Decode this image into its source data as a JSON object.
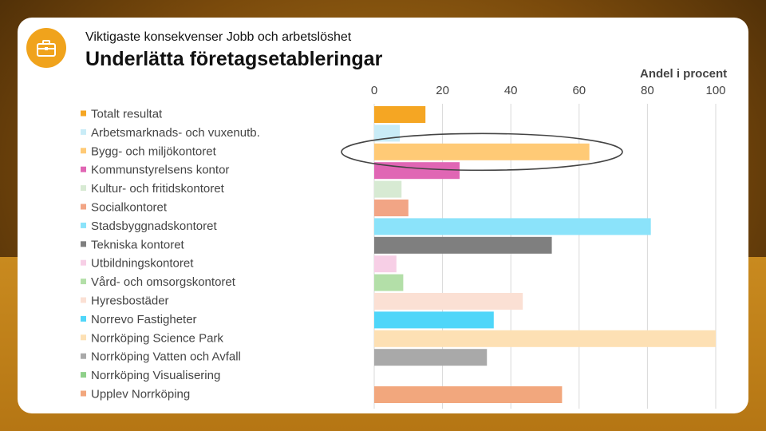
{
  "header": {
    "subtitle": "Viktigaste konsekvenser Jobb och arbetslöshet",
    "title": "Underlätta företagsetableringar",
    "icon": "briefcase-icon"
  },
  "chart_data": {
    "type": "bar",
    "orientation": "horizontal",
    "axis_label": "Andel i procent",
    "xlim": [
      0,
      100
    ],
    "ticks": [
      0,
      20,
      40,
      60,
      80,
      100
    ],
    "grid": true,
    "legend_position": "left",
    "highlighted_category": "Bygg- och miljökontoret",
    "categories": [
      "Totalt resultat",
      "Arbetsmarknads- och vuxenutb.",
      "Bygg- och miljökontoret",
      "Kommunstyrelsens kontor",
      "Kultur- och fritidskontoret",
      "Socialkontoret",
      "Stadsbyggnadskontoret",
      "Tekniska kontoret",
      "Utbildningskontoret",
      "Vård- och omsorgskontoret",
      "Hyresbostäder",
      "Norrevo Fastigheter",
      "Norrköping Science Park",
      "Norrköping Vatten och Avfall",
      "Norrköping Visualisering",
      "Upplev Norrköping"
    ],
    "values": [
      15,
      7.5,
      63,
      25,
      8,
      10,
      81,
      52,
      6.5,
      8.5,
      43.5,
      35,
      100,
      33,
      0,
      55
    ],
    "colors": [
      "#f5a623",
      "#c9ecf7",
      "#ffca76",
      "#e066b4",
      "#d7ead3",
      "#f2a585",
      "#8be3fa",
      "#7f7f7f",
      "#f7cfe6",
      "#b3dfa8",
      "#fbe0d4",
      "#4fd6f9",
      "#fde0b4",
      "#a9a9a9",
      "#8fd08a",
      "#f2a77d"
    ]
  }
}
